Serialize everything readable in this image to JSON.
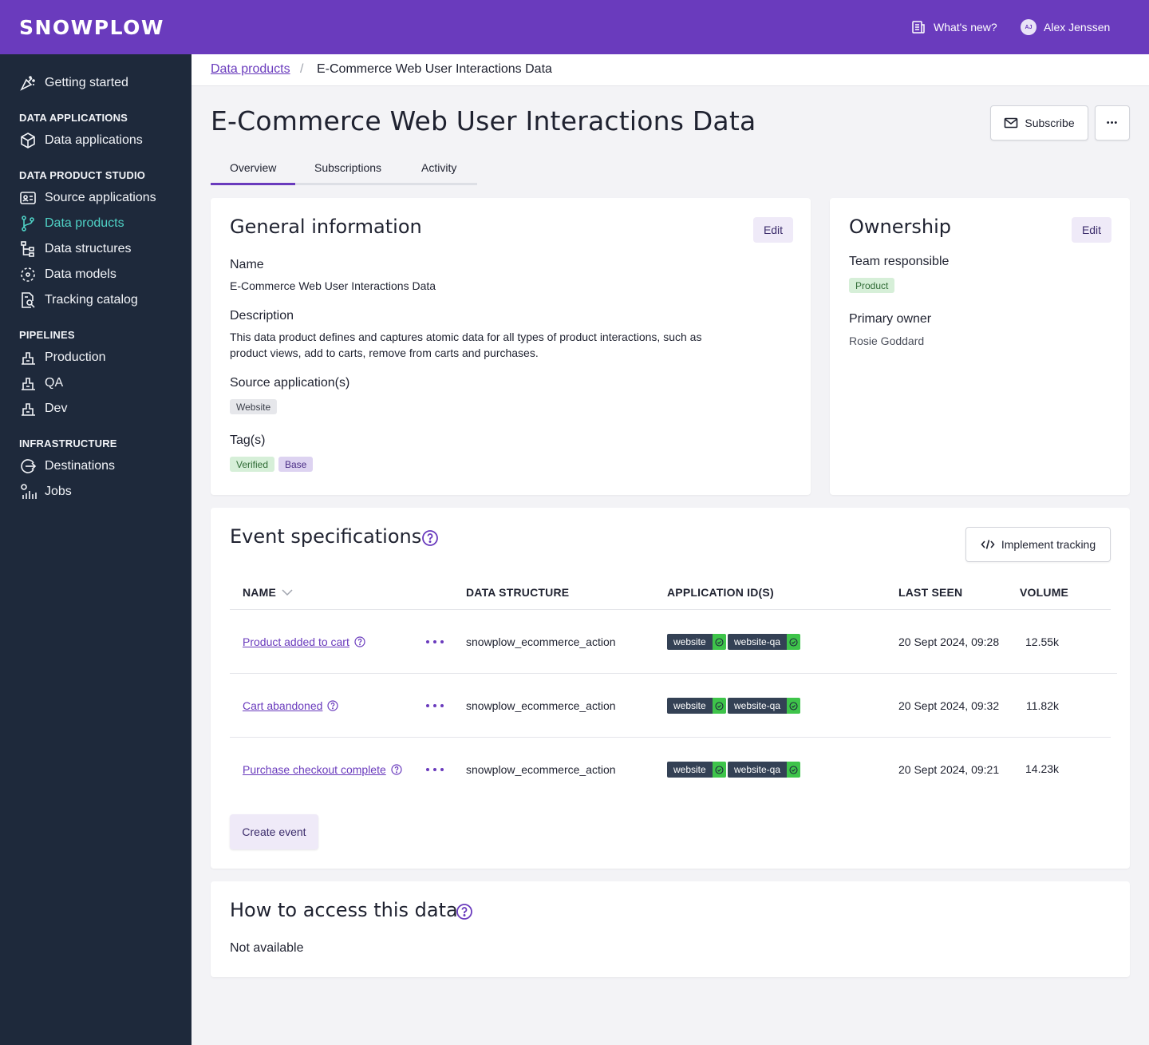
{
  "brand": {
    "logo": "SNOWPLOW",
    "accent": "#6a3bbd",
    "sidebar_bg": "#1e293b",
    "active_nav": "#4fd1c5"
  },
  "topbar": {
    "whats_new": "What's new?",
    "user_initials": "AJ",
    "user_name": "Alex Jenssen"
  },
  "sidebar": {
    "getting_started": "Getting started",
    "sections": [
      {
        "title": "DATA APPLICATIONS",
        "items": [
          {
            "label": "Data applications",
            "icon": "cube-icon"
          }
        ]
      },
      {
        "title": "DATA PRODUCT STUDIO",
        "items": [
          {
            "label": "Source applications",
            "icon": "id-card-icon"
          },
          {
            "label": "Data products",
            "icon": "git-branch-icon",
            "active": true
          },
          {
            "label": "Data structures",
            "icon": "tree-structure-icon"
          },
          {
            "label": "Data models",
            "icon": "model-icon"
          },
          {
            "label": "Tracking catalog",
            "icon": "search-document-icon"
          }
        ]
      },
      {
        "title": "PIPELINES",
        "items": [
          {
            "label": "Production",
            "icon": "pipeline-icon"
          },
          {
            "label": "QA",
            "icon": "pipeline-icon"
          },
          {
            "label": "Dev",
            "icon": "pipeline-icon"
          }
        ]
      },
      {
        "title": "INFRASTRUCTURE",
        "items": [
          {
            "label": "Destinations",
            "icon": "destination-icon"
          },
          {
            "label": "Jobs",
            "icon": "jobs-icon"
          }
        ]
      }
    ]
  },
  "breadcrumb": {
    "parent": "Data products",
    "separator": "/",
    "current": "E-Commerce Web User Interactions Data"
  },
  "page": {
    "title": "E-Commerce Web User Interactions Data",
    "subscribe": "Subscribe",
    "more": "•••",
    "tabs": [
      "Overview",
      "Subscriptions",
      "Activity"
    ],
    "active_tab": "Overview"
  },
  "general": {
    "title": "General information",
    "edit": "Edit",
    "name_label": "Name",
    "name_value": "E-Commerce Web User Interactions Data",
    "description_label": "Description",
    "description_line1": "This data product defines and captures atomic data for all types of product interactions, such as",
    "description_line2": "product views, add to carts, remove from carts and purchases.",
    "source_label": "Source application(s)",
    "source_chips": [
      "Website"
    ],
    "tags_label": "Tag(s)",
    "tags": [
      "Verified",
      "Base"
    ]
  },
  "ownership": {
    "title": "Ownership",
    "edit": "Edit",
    "team_label": "Team responsible",
    "team_value": "Product",
    "owner_label": "Primary owner",
    "owner_value": "Rosie Goddard"
  },
  "events": {
    "title": "Event specifications",
    "implement": "Implement tracking",
    "columns": [
      "NAME",
      "DATA STRUCTURE",
      "APPLICATION ID(S)",
      "LAST SEEN",
      "VOLUME"
    ],
    "rows": [
      {
        "name": "Product added to cart",
        "structure": "snowplow_ecommerce_action",
        "app_ids": [
          "website",
          "website-qa"
        ],
        "last_seen": "20 Sept 2024, 09:28",
        "volume": "12.55k"
      },
      {
        "name": "Cart abandoned",
        "structure": "snowplow_ecommerce_action",
        "app_ids": [
          "website",
          "website-qa"
        ],
        "last_seen": "20 Sept 2024, 09:32",
        "volume": "11.82k"
      },
      {
        "name": "Purchase checkout complete",
        "structure": "snowplow_ecommerce_action",
        "app_ids": [
          "website",
          "website-qa"
        ],
        "last_seen": "20 Sept 2024, 09:21",
        "volume": "14.23k"
      }
    ],
    "create": "Create event"
  },
  "access": {
    "title": "How to access this data",
    "value": "Not available"
  }
}
